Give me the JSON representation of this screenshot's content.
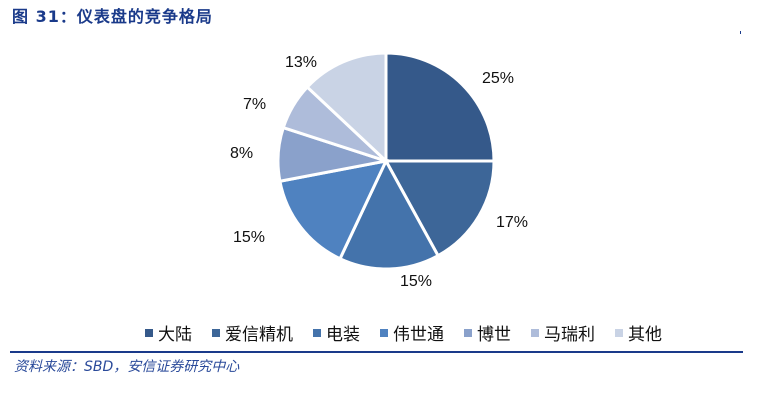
{
  "title": "图 31：仪表盘的竞争格局",
  "source": "资料来源：SBD，安信证券研究中心",
  "chart_data": {
    "type": "pie",
    "title": "图 31：仪表盘的竞争格局",
    "categories": [
      "大陆",
      "爱信精机",
      "电装",
      "伟世通",
      "博世",
      "马瑞利",
      "其他"
    ],
    "values": [
      25,
      17,
      15,
      15,
      8,
      7,
      13
    ],
    "labels": [
      "25%",
      "17%",
      "15%",
      "15%",
      "8%",
      "7%",
      "13%"
    ],
    "colors": [
      "#35598a",
      "#3d6698",
      "#4473ab",
      "#4f82c0",
      "#8aa1cb",
      "#aebcda",
      "#c9d3e5"
    ],
    "legend_position": "bottom",
    "start_angle": "12 o'clock, clockwise"
  },
  "legend": [
    {
      "label": "大陆",
      "color": "#35598a"
    },
    {
      "label": "爱信精机",
      "color": "#3d6698"
    },
    {
      "label": "电装",
      "color": "#4473ab"
    },
    {
      "label": "伟世通",
      "color": "#4f82c0"
    },
    {
      "label": "博世",
      "color": "#8aa1cb"
    },
    {
      "label": "马瑞利",
      "color": "#aebcda"
    },
    {
      "label": "其他",
      "color": "#c9d3e5"
    }
  ]
}
